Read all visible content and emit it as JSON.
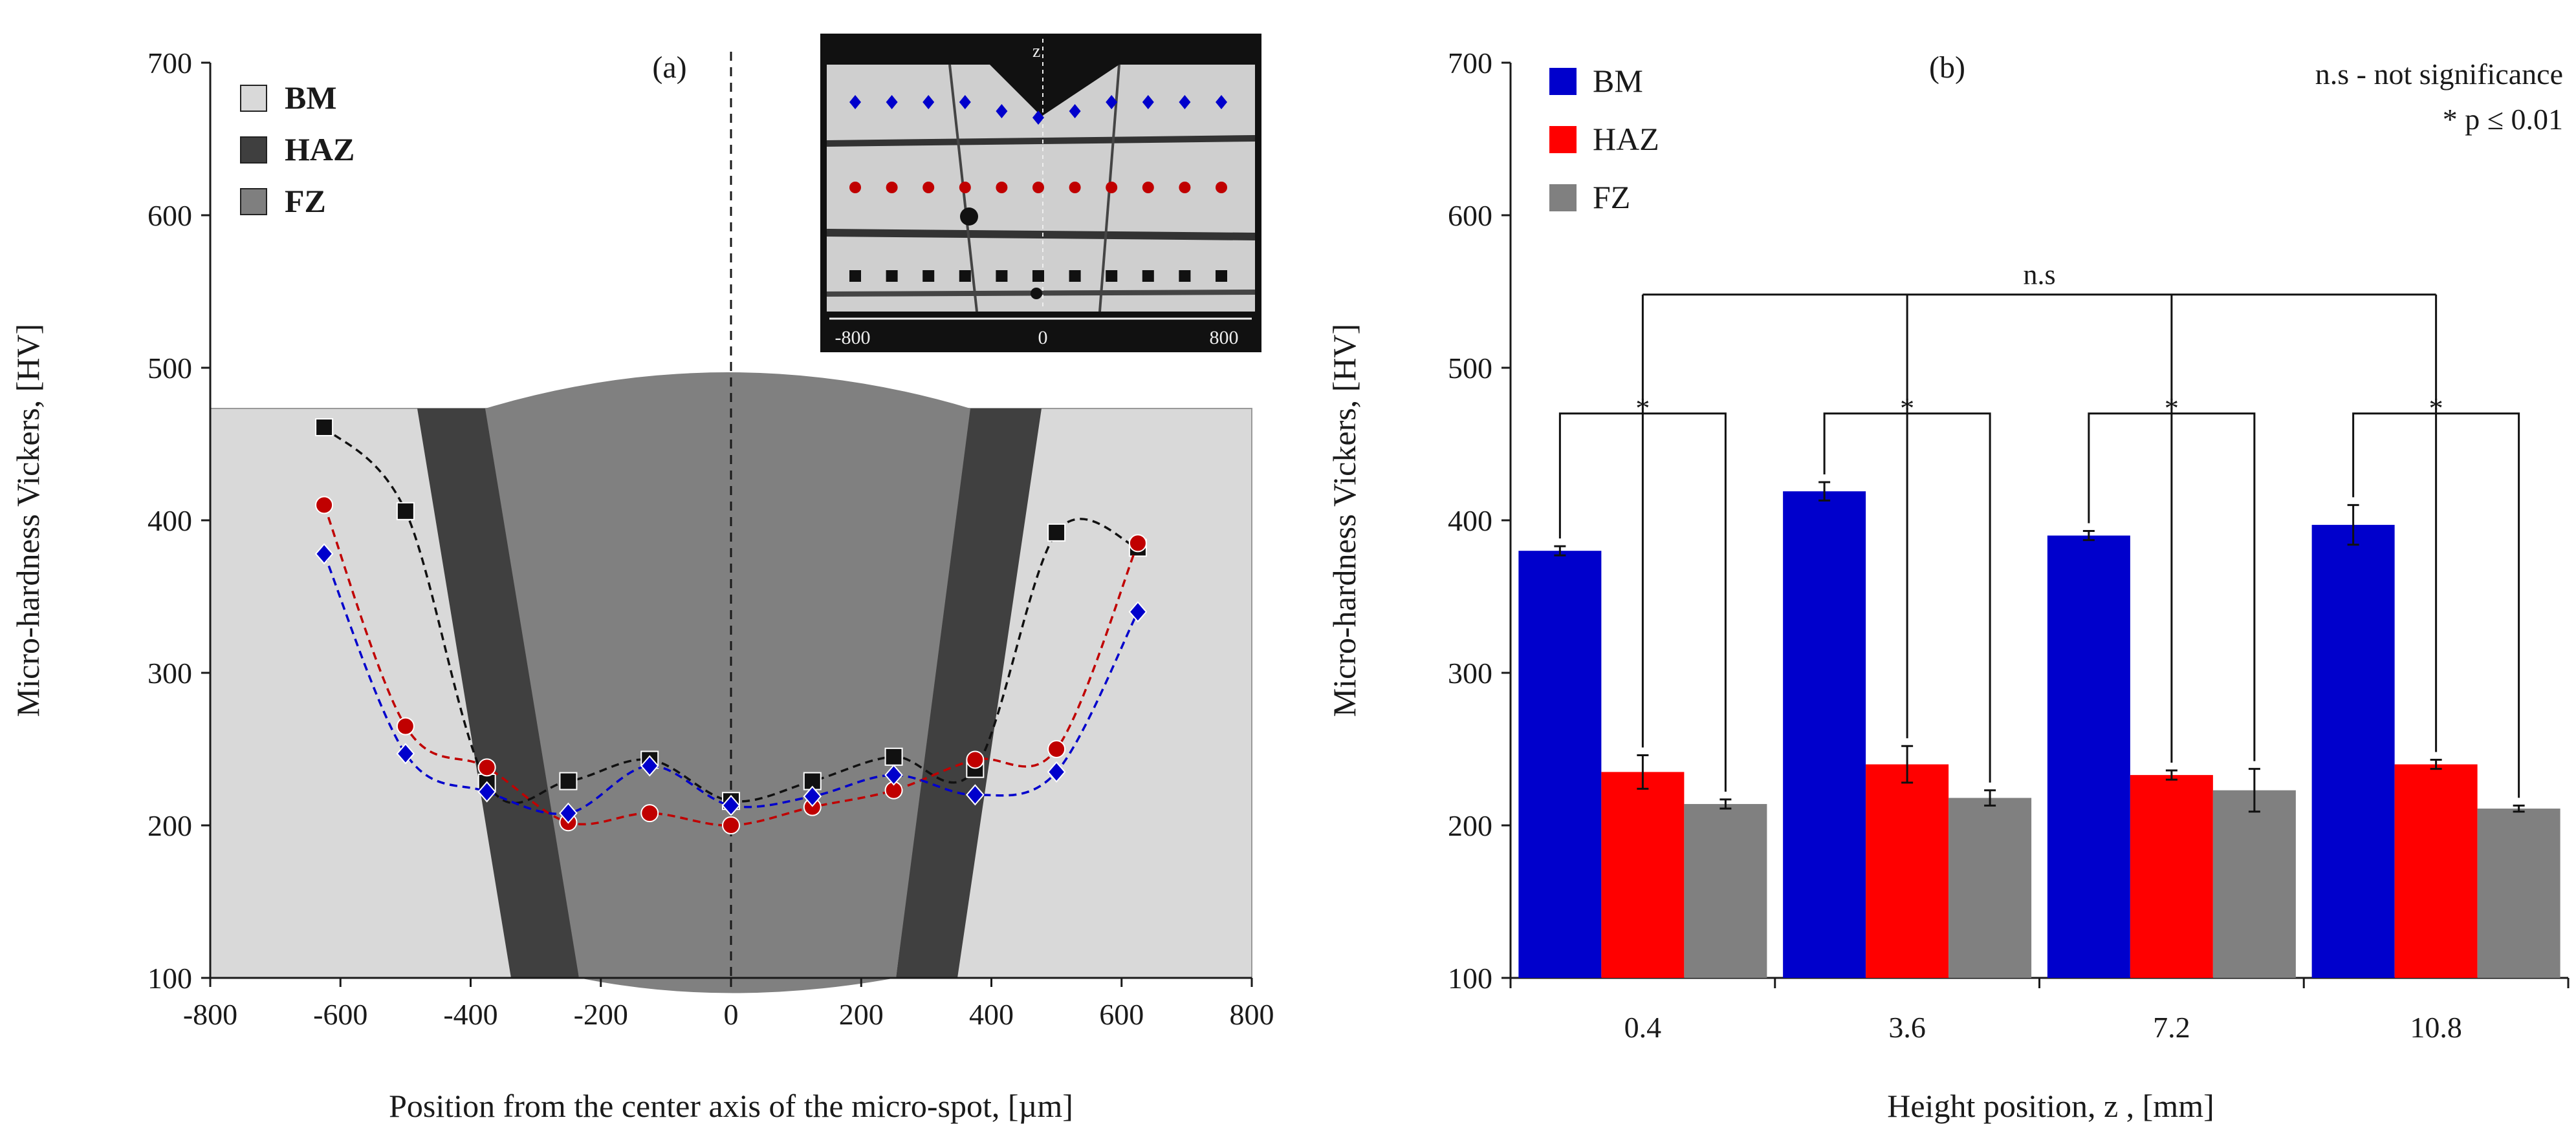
{
  "chart_data": [
    {
      "type": "line",
      "panel_label": "(a)",
      "xlabel": "Position from the center axis of the micro-spot, [µm]",
      "ylabel": "Micro-hardness Vickers, [HV]",
      "xlim": [
        -800,
        800
      ],
      "ylim": [
        100,
        700
      ],
      "x_ticks": [
        "-800",
        "-600",
        "-400",
        "-200",
        "0",
        "200",
        "400",
        "600",
        "800"
      ],
      "y_ticks": [
        "100",
        "200",
        "300",
        "400",
        "500",
        "600",
        "700"
      ],
      "legend": [
        {
          "name": "BM",
          "color": "#d9d9d9"
        },
        {
          "name": "HAZ",
          "color": "#3f3f3f"
        },
        {
          "name": "FZ",
          "color": "#7f7f7f"
        }
      ],
      "series": [
        {
          "name": "black-squares",
          "color": "#111111",
          "marker": "square",
          "x": [
            -625,
            -500,
            -375,
            -250,
            -125,
            0,
            125,
            250,
            375,
            500,
            625
          ],
          "values": [
            461,
            406,
            228,
            229,
            243,
            216,
            229,
            245,
            237,
            392,
            382
          ]
        },
        {
          "name": "red-circles",
          "color": "#c00000",
          "marker": "circle",
          "x": [
            -625,
            -500,
            -375,
            -250,
            -125,
            0,
            125,
            250,
            375,
            500,
            625
          ],
          "values": [
            410,
            265,
            238,
            202,
            208,
            200,
            212,
            223,
            243,
            250,
            385
          ]
        },
        {
          "name": "blue-diamonds",
          "color": "#0000cc",
          "marker": "diamond",
          "x": [
            -625,
            -500,
            -375,
            -250,
            -125,
            0,
            125,
            250,
            375,
            500,
            625
          ],
          "values": [
            378,
            247,
            222,
            208,
            239,
            213,
            219,
            233,
            220,
            235,
            340
          ]
        }
      ],
      "inset": {
        "axis_label": "z",
        "tick_labels": [
          "-800",
          "0",
          "800"
        ]
      }
    },
    {
      "type": "bar",
      "panel_label": "(b)",
      "xlabel": "Height position, z , [mm]",
      "ylabel": "Micro-hardness Vickers, [HV]",
      "ylim": [
        100,
        700
      ],
      "y_ticks": [
        "100",
        "200",
        "300",
        "400",
        "500",
        "600",
        "700"
      ],
      "categories": [
        "0.4",
        "3.6",
        "7.2",
        "10.8"
      ],
      "series": [
        {
          "name": "BM",
          "color": "#0000cc",
          "values": [
            380,
            419,
            390,
            397
          ],
          "errors": [
            3,
            6,
            3,
            13
          ]
        },
        {
          "name": "HAZ",
          "color": "#ff0000",
          "values": [
            235,
            240,
            233,
            240
          ],
          "errors": [
            11,
            12,
            3,
            3
          ]
        },
        {
          "name": "FZ",
          "color": "#808080",
          "values": [
            214,
            218,
            223,
            211
          ],
          "errors": [
            3,
            5,
            14,
            2
          ]
        }
      ],
      "note_line1": "n.s - not significance",
      "note_line2": "* p ≤ 0.01",
      "significance": {
        "within": "*",
        "between": "n.s"
      }
    }
  ]
}
